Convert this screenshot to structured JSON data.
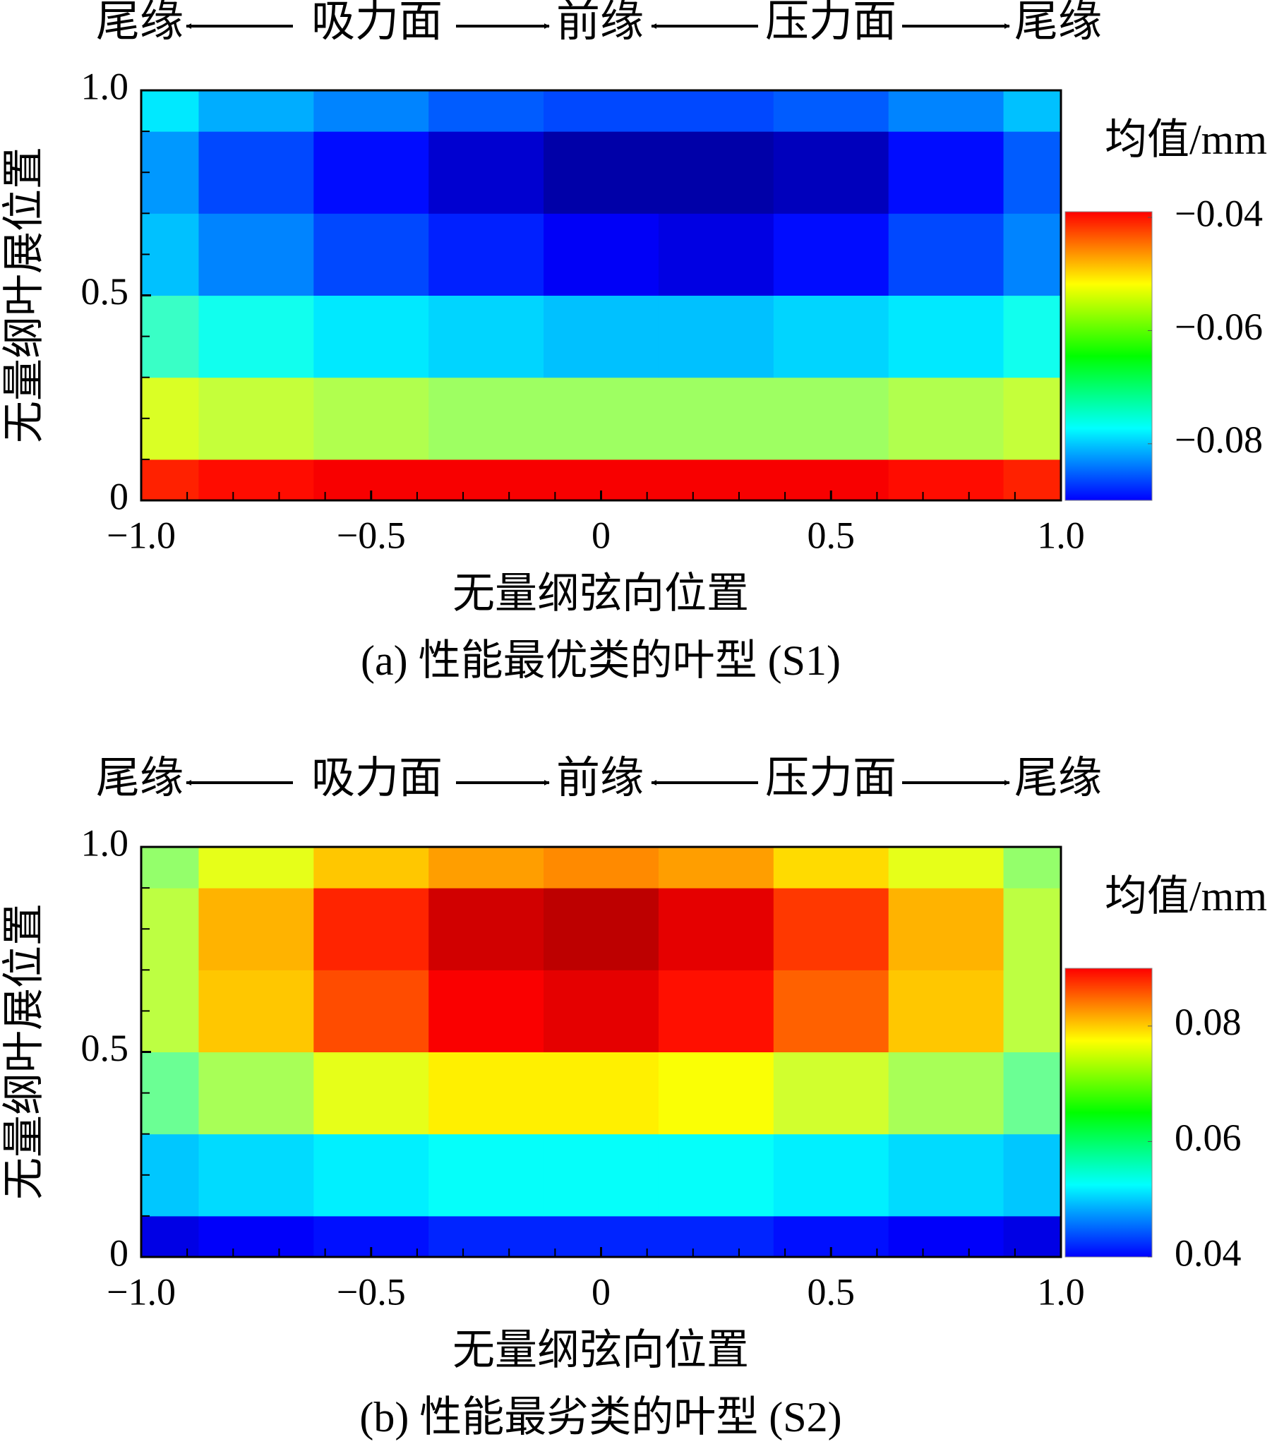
{
  "chart_data": [
    {
      "type": "heatmap",
      "header": [
        "尾缘",
        "吸力面",
        "前缘",
        "压力面",
        "尾缘"
      ],
      "x_label": "无量纲弦向位置",
      "y_label": "无量纲叶展位置",
      "caption": "(a) 性能最优类的叶型 (S1)",
      "colorbar_title": "均值/mm",
      "x": [
        -1,
        -0.75,
        -0.5,
        -0.25,
        0,
        0.25,
        0.5,
        0.75,
        1
      ],
      "y": [
        0,
        0.2,
        0.4,
        0.6,
        0.8,
        1
      ],
      "values": [
        [
          -0.047,
          -0.046,
          -0.045,
          -0.045,
          -0.045,
          -0.045,
          -0.045,
          -0.046,
          -0.047
        ],
        [
          -0.06,
          -0.061,
          -0.062,
          -0.063,
          -0.063,
          -0.063,
          -0.063,
          -0.062,
          -0.061
        ],
        [
          -0.068,
          -0.07,
          -0.072,
          -0.073,
          -0.074,
          -0.074,
          -0.073,
          -0.072,
          -0.07
        ],
        [
          -0.074,
          -0.077,
          -0.08,
          -0.082,
          -0.084,
          -0.085,
          -0.083,
          -0.08,
          -0.077
        ],
        [
          -0.076,
          -0.08,
          -0.083,
          -0.086,
          -0.088,
          -0.088,
          -0.087,
          -0.083,
          -0.079
        ],
        [
          -0.072,
          -0.075,
          -0.077,
          -0.079,
          -0.08,
          -0.08,
          -0.079,
          -0.077,
          -0.074
        ]
      ],
      "xlim": [
        -1,
        1
      ],
      "ylim": [
        0,
        1
      ],
      "xticks": [
        {
          "value": -1,
          "label": "−1.0"
        },
        {
          "value": -0.5,
          "label": "−0.5"
        },
        0,
        0.5,
        {
          "value": 1,
          "label": "1.0"
        }
      ],
      "xminorticks": [
        -0.9,
        -0.8,
        -0.7,
        -0.6,
        -0.4,
        -0.3,
        -0.2,
        -0.1,
        0.1,
        0.2,
        0.3,
        0.4,
        0.6,
        0.7,
        0.8,
        0.9
      ],
      "yticks": [
        0,
        0.5,
        {
          "value": 1,
          "label": "1.0"
        }
      ],
      "yminorticks": [
        0.1,
        0.2,
        0.3,
        0.4,
        0.6,
        0.7,
        0.8,
        0.9
      ],
      "clim": [
        -0.09,
        -0.039
      ],
      "colormap": "jet",
      "cticks": [
        {
          "value": -0.04,
          "label": "−0.04"
        },
        {
          "value": -0.06,
          "label": "−0.06"
        },
        {
          "value": -0.08,
          "label": "−0.08"
        }
      ]
    },
    {
      "type": "heatmap",
      "header": [
        "尾缘",
        "吸力面",
        "前缘",
        "压力面",
        "尾缘"
      ],
      "x_label": "无量纲弦向位置",
      "y_label": "无量纲叶展位置",
      "caption": "(b) 性能最劣类的叶型 (S2)",
      "colorbar_title": "均值/mm",
      "x": [
        -1,
        -0.75,
        -0.5,
        -0.25,
        0,
        0.25,
        0.5,
        0.75,
        1
      ],
      "y": [
        0,
        0.2,
        0.4,
        0.6,
        0.8,
        1
      ],
      "values": [
        [
          0.045,
          0.046,
          0.047,
          0.048,
          0.048,
          0.048,
          0.047,
          0.046,
          0.045
        ],
        [
          0.056,
          0.057,
          0.058,
          0.059,
          0.059,
          0.059,
          0.058,
          0.057,
          0.056
        ],
        [
          0.064,
          0.067,
          0.07,
          0.072,
          0.072,
          0.071,
          0.069,
          0.067,
          0.064
        ],
        [
          0.068,
          0.074,
          0.08,
          0.084,
          0.085,
          0.083,
          0.079,
          0.074,
          0.068
        ],
        [
          0.068,
          0.075,
          0.082,
          0.086,
          0.087,
          0.085,
          0.081,
          0.075,
          0.068
        ],
        [
          0.066,
          0.07,
          0.074,
          0.076,
          0.077,
          0.076,
          0.073,
          0.07,
          0.066
        ]
      ],
      "xlim": [
        -1,
        1
      ],
      "ylim": [
        0,
        1
      ],
      "xticks": [
        {
          "value": -1,
          "label": "−1.0"
        },
        {
          "value": -0.5,
          "label": "−0.5"
        },
        0,
        0.5,
        {
          "value": 1,
          "label": "1.0"
        }
      ],
      "xminorticks": [
        -0.9,
        -0.8,
        -0.7,
        -0.6,
        -0.4,
        -0.3,
        -0.2,
        -0.1,
        0.1,
        0.2,
        0.3,
        0.4,
        0.6,
        0.7,
        0.8,
        0.9
      ],
      "yticks": [
        0,
        0.5,
        {
          "value": 1,
          "label": "1.0"
        }
      ],
      "yminorticks": [
        0.1,
        0.2,
        0.3,
        0.4,
        0.6,
        0.7,
        0.8,
        0.9
      ],
      "clim": [
        0.04,
        0.09
      ],
      "colormap": "jet",
      "cticks": [
        0.04,
        0.06,
        0.08
      ]
    }
  ]
}
